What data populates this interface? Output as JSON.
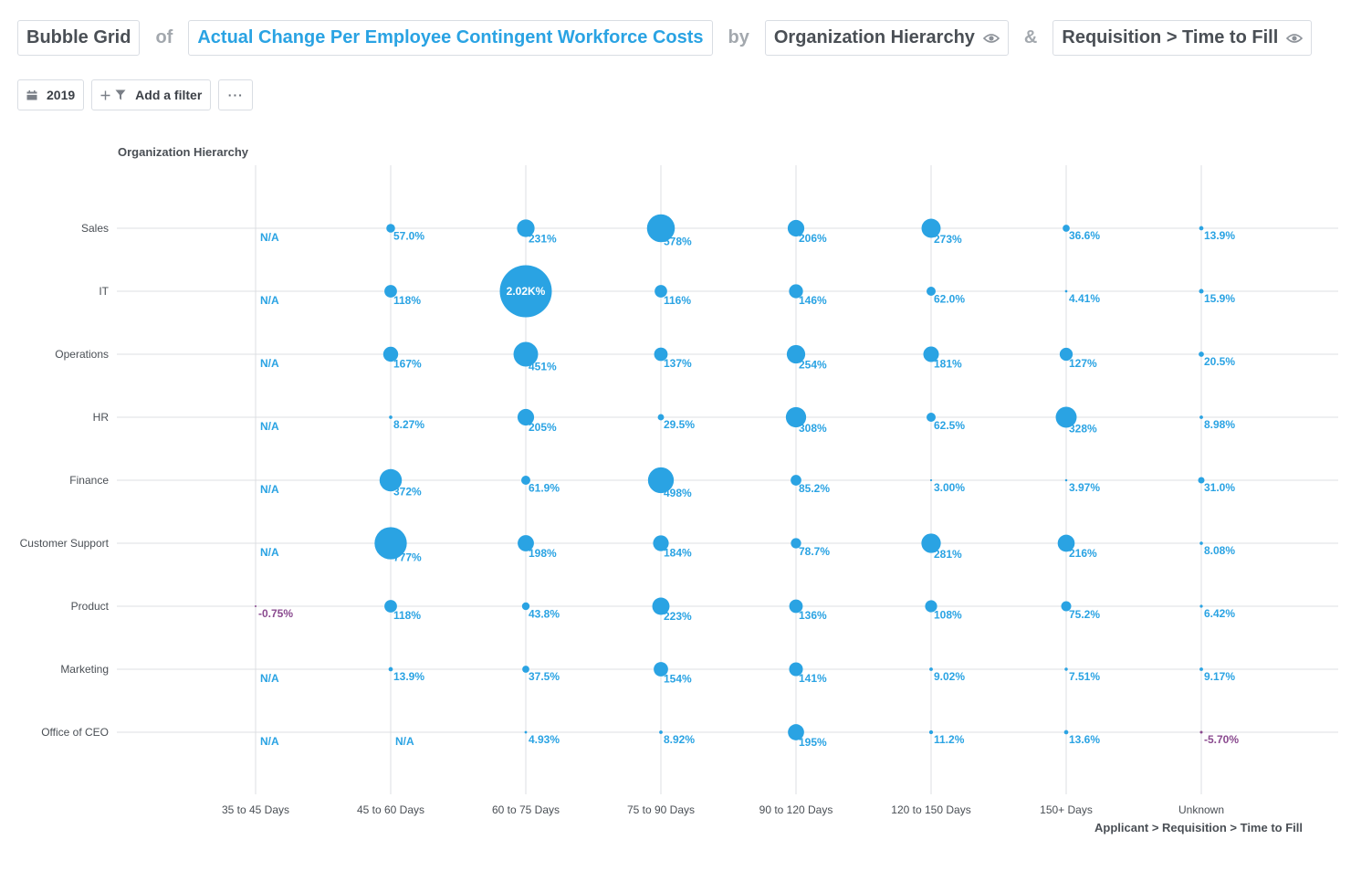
{
  "header": {
    "chart_type_label": "Bubble Grid",
    "of_label": "of",
    "metric_label": "Actual Change Per Employee Contingent Workforce Costs",
    "by_label": "by",
    "dimension1_label": "Organization Hierarchy",
    "and_label": "&",
    "dimension2_label": "Requisition > Time to Fill"
  },
  "toolbar": {
    "date_label": "2019",
    "add_filter_label": "Add a filter",
    "more_label": "···"
  },
  "icons": {
    "calendar": "calendar-icon",
    "plus": "plus-icon",
    "filter": "filter-icon",
    "eye": "eye-icon"
  },
  "colors": {
    "bubble": "#2aa3e3",
    "negative": "#8a4a8f",
    "grid": "#dcdfe3",
    "axis_text": "#4a4f55"
  },
  "chart_data": {
    "type": "scatter",
    "subtype": "bubble-grid",
    "ylabel": "Organization Hierarchy",
    "xlabel": "Applicant > Requisition > Time to Fill",
    "x_categories": [
      "35 to 45 Days",
      "45 to 60 Days",
      "60 to 75 Days",
      "75 to 90 Days",
      "90 to 120 Days",
      "120 to 150 Days",
      "150+ Days",
      "Unknown"
    ],
    "y_categories": [
      "Sales",
      "IT",
      "Operations",
      "HR",
      "Finance",
      "Customer Support",
      "Product",
      "Marketing",
      "Office of CEO"
    ],
    "rows": [
      {
        "name": "Sales",
        "labels": [
          "N/A",
          "57.0%",
          "231%",
          "578%",
          "206%",
          "273%",
          "36.6%",
          "13.9%"
        ],
        "values": [
          null,
          57.0,
          231,
          578,
          206,
          273,
          36.6,
          13.9
        ]
      },
      {
        "name": "IT",
        "labels": [
          "N/A",
          "118%",
          "2.02K%",
          "116%",
          "146%",
          "62.0%",
          "4.41%",
          "15.9%"
        ],
        "values": [
          null,
          118,
          2020,
          116,
          146,
          62.0,
          4.41,
          15.9
        ]
      },
      {
        "name": "Operations",
        "labels": [
          "N/A",
          "167%",
          "451%",
          "137%",
          "254%",
          "181%",
          "127%",
          "20.5%"
        ],
        "values": [
          null,
          167,
          451,
          137,
          254,
          181,
          127,
          20.5
        ]
      },
      {
        "name": "HR",
        "labels": [
          "N/A",
          "8.27%",
          "205%",
          "29.5%",
          "308%",
          "62.5%",
          "328%",
          "8.98%"
        ],
        "values": [
          null,
          8.27,
          205,
          29.5,
          308,
          62.5,
          328,
          8.98
        ]
      },
      {
        "name": "Finance",
        "labels": [
          "N/A",
          "372%",
          "61.9%",
          "498%",
          "85.2%",
          "3.00%",
          "3.97%",
          "31.0%"
        ],
        "values": [
          null,
          372,
          61.9,
          498,
          85.2,
          3.0,
          3.97,
          31.0
        ]
      },
      {
        "name": "Customer Support",
        "labels": [
          "N/A",
          "777%",
          "198%",
          "184%",
          "78.7%",
          "281%",
          "216%",
          "8.08%"
        ],
        "values": [
          null,
          777,
          198,
          184,
          78.7,
          281,
          216,
          8.08
        ]
      },
      {
        "name": "Product",
        "labels": [
          "-0.75%",
          "118%",
          "43.8%",
          "223%",
          "136%",
          "108%",
          "75.2%",
          "6.42%"
        ],
        "values": [
          -0.75,
          118,
          43.8,
          223,
          136,
          108,
          75.2,
          6.42
        ]
      },
      {
        "name": "Marketing",
        "labels": [
          "N/A",
          "13.9%",
          "37.5%",
          "154%",
          "141%",
          "9.02%",
          "7.51%",
          "9.17%"
        ],
        "values": [
          null,
          13.9,
          37.5,
          154,
          141,
          9.02,
          7.51,
          9.17
        ]
      },
      {
        "name": "Office of CEO",
        "labels": [
          "N/A",
          "N/A",
          "4.93%",
          "8.92%",
          "195%",
          "11.2%",
          "13.6%",
          "-5.70%"
        ],
        "values": [
          null,
          null,
          4.93,
          8.92,
          195,
          11.2,
          13.6,
          -5.7
        ]
      }
    ],
    "inside_label_threshold": 1000,
    "grid": true
  }
}
